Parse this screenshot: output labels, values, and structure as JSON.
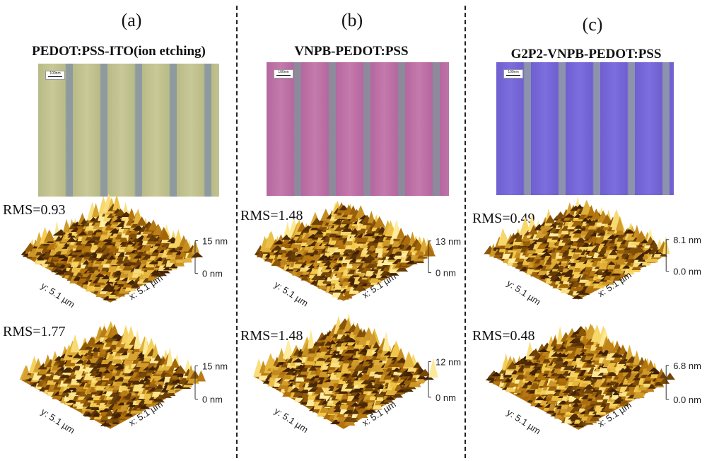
{
  "panels": [
    {
      "letter": "(a)",
      "title": "PEDOT:PSS-ITO(ion etching)",
      "scalebar": "100nm",
      "micrograph_colors": {
        "base": "#b8bb86",
        "highlight": "#c9c898",
        "stripe": "#8f9aa0"
      },
      "afm": [
        {
          "rms": "RMS=0.93",
          "z_max": "15 nm",
          "z_min": "0 nm",
          "y_axis": "y: 5.1 µm",
          "x_axis": "x: 5.1 µm"
        },
        {
          "rms": "RMS=1.77",
          "z_max": "15 nm",
          "z_min": "0 nm",
          "y_axis": "y: 5.1 µm",
          "x_axis": "x: 5.1 µm"
        }
      ]
    },
    {
      "letter": "(b)",
      "title": "VNPB-PEDOT:PSS",
      "scalebar": "100nm",
      "micrograph_colors": {
        "base": "#b5679f",
        "highlight": "#c47aac",
        "stripe": "#8d8a9c"
      },
      "afm": [
        {
          "rms": "RMS=1.48",
          "z_max": "13 nm",
          "z_min": "0 nm",
          "y_axis": "y: 5.1 µm",
          "x_axis": "x: 5.1 µm"
        },
        {
          "rms": "RMS=1.48",
          "z_max": "12 nm",
          "z_min": "0 nm",
          "y_axis": "y: 5.1 µm",
          "x_axis": "x: 5.1 µm"
        }
      ]
    },
    {
      "letter": "(c)",
      "title": "G2P2-VNPB-PEDOT:PSS",
      "scalebar": "100nm",
      "micrograph_colors": {
        "base": "#6f5fd0",
        "highlight": "#7c6ede",
        "stripe": "#8d93ad"
      },
      "afm": [
        {
          "rms": "RMS=0.49",
          "z_max": "8.1 nm",
          "z_min": "0.0 nm",
          "y_axis": "y: 5.1 µm",
          "x_axis": "x: 5.1 µm"
        },
        {
          "rms": "RMS=0.48",
          "z_max": "6.8 nm",
          "z_min": "0.0 nm",
          "y_axis": "y: 5.1 µm",
          "x_axis": "x: 5.1 µm"
        }
      ]
    }
  ],
  "afm_colors": {
    "dark": "#3d1f05",
    "mid": "#b0700c",
    "light": "#f2c84a",
    "peak": "#fff0a6"
  }
}
